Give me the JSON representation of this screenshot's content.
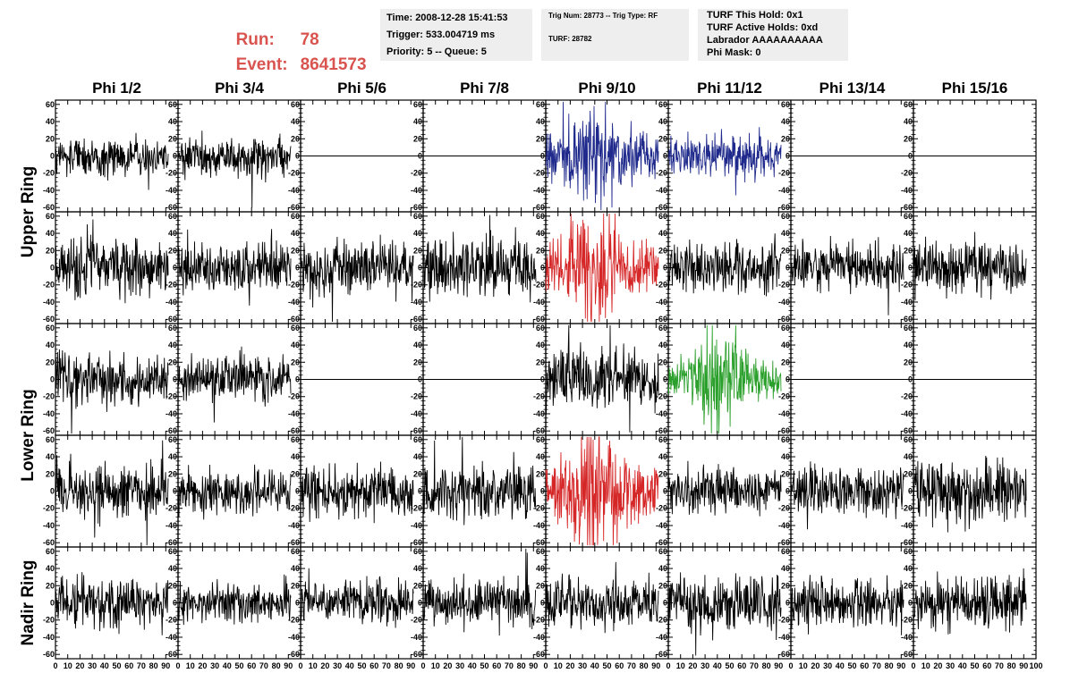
{
  "header": {
    "run_label": "Run:",
    "run_value": "78",
    "event_label": "Event:",
    "event_value": "8641573",
    "run_color": "#d9534f"
  },
  "info_boxes": {
    "time": {
      "lines": [
        "Time: 2008-12-28 15:41:53",
        "Trigger: 533.004719 ms",
        "Priority: 5 -- Queue: 5"
      ]
    },
    "trig": {
      "lines": [
        "Trig Num: 28773 -- Trig Type: RF",
        "TURF: 28782"
      ]
    },
    "turf": {
      "lines": [
        "TURF This Hold: 0x1",
        "TURF Active Holds: 0xd",
        "Labrador AAAAAAAAAA",
        "Phi Mask: 0"
      ]
    }
  },
  "columns": [
    "Phi 1/2",
    "Phi 3/4",
    "Phi 5/6",
    "Phi 7/8",
    "Phi 9/10",
    "Phi 11/12",
    "Phi 13/14",
    "Phi 15/16"
  ],
  "ring_labels": [
    "Upper Ring",
    "Lower Ring",
    "Nadir Ring"
  ],
  "colors": {
    "default_trace": "#000000",
    "blue_trace": "#1f2a8c",
    "red_trace": "#d62728",
    "green_trace": "#2ca02c"
  },
  "chart_data": {
    "type": "line",
    "xlim": [
      0,
      100
    ],
    "ylim": [
      -65,
      65
    ],
    "x_ticks": [
      0,
      10,
      20,
      30,
      40,
      50,
      60,
      70,
      80,
      90,
      100
    ],
    "x_tick_labels": [
      "0",
      "10",
      "20",
      "30",
      "40",
      "50",
      "60",
      "70",
      "80",
      "90",
      "100"
    ],
    "y_ticks": [
      60,
      40,
      20,
      0,
      -20,
      -40,
      -60
    ],
    "y_tick_labels": [
      "60",
      "40",
      "20",
      "0",
      "-20",
      "-40",
      "-60"
    ],
    "waveform_extent_x": [
      0,
      92
    ],
    "panels": [
      [
        {
          "trace": "noise",
          "amp": 11,
          "color": "default_trace"
        },
        {
          "trace": "noise",
          "amp": 11,
          "color": "default_trace"
        },
        {
          "trace": "flat",
          "amp": 0,
          "color": "default_trace"
        },
        {
          "trace": "flat",
          "amp": 0,
          "color": "default_trace"
        },
        {
          "trace": "pulse",
          "amp": 22,
          "color": "blue_trace"
        },
        {
          "trace": "noise",
          "amp": 12,
          "color": "blue_trace"
        },
        {
          "trace": "flat",
          "amp": 0,
          "color": "default_trace"
        },
        {
          "trace": "flat",
          "amp": 0,
          "color": "default_trace"
        }
      ],
      [
        {
          "trace": "noise",
          "amp": 16,
          "color": "default_trace"
        },
        {
          "trace": "noise",
          "amp": 14,
          "color": "default_trace"
        },
        {
          "trace": "noise",
          "amp": 15,
          "color": "default_trace"
        },
        {
          "trace": "noise",
          "amp": 17,
          "color": "default_trace"
        },
        {
          "trace": "pulse",
          "amp": 25,
          "color": "red_trace"
        },
        {
          "trace": "noise",
          "amp": 14,
          "color": "default_trace"
        },
        {
          "trace": "noise",
          "amp": 14,
          "color": "default_trace"
        },
        {
          "trace": "noise",
          "amp": 15,
          "color": "default_trace"
        }
      ],
      [
        {
          "trace": "noise",
          "amp": 15,
          "color": "default_trace"
        },
        {
          "trace": "noise",
          "amp": 13,
          "color": "default_trace"
        },
        {
          "trace": "flat",
          "amp": 0,
          "color": "default_trace"
        },
        {
          "trace": "flat",
          "amp": 0,
          "color": "default_trace"
        },
        {
          "trace": "noise",
          "amp": 17,
          "color": "default_trace"
        },
        {
          "trace": "pulse",
          "amp": 20,
          "color": "green_trace"
        },
        {
          "trace": "flat",
          "amp": 0,
          "color": "default_trace"
        },
        {
          "trace": "flat",
          "amp": 0,
          "color": "default_trace"
        }
      ],
      [
        {
          "trace": "noise",
          "amp": 15,
          "color": "default_trace"
        },
        {
          "trace": "noise",
          "amp": 13,
          "color": "default_trace"
        },
        {
          "trace": "noise",
          "amp": 16,
          "color": "default_trace"
        },
        {
          "trace": "noise",
          "amp": 17,
          "color": "default_trace"
        },
        {
          "trace": "pulse",
          "amp": 26,
          "color": "red_trace"
        },
        {
          "trace": "noise",
          "amp": 12,
          "color": "default_trace"
        },
        {
          "trace": "noise",
          "amp": 14,
          "color": "default_trace"
        },
        {
          "trace": "noise",
          "amp": 18,
          "color": "default_trace"
        }
      ],
      [
        {
          "trace": "noise",
          "amp": 14,
          "color": "default_trace"
        },
        {
          "trace": "noise",
          "amp": 12,
          "color": "default_trace"
        },
        {
          "trace": "noise",
          "amp": 12,
          "color": "default_trace"
        },
        {
          "trace": "noise",
          "amp": 13,
          "color": "default_trace"
        },
        {
          "trace": "noise",
          "amp": 14,
          "color": "default_trace"
        },
        {
          "trace": "noise",
          "amp": 16,
          "color": "default_trace"
        },
        {
          "trace": "noise",
          "amp": 14,
          "color": "default_trace"
        },
        {
          "trace": "noise",
          "amp": 15,
          "color": "default_trace"
        }
      ]
    ]
  }
}
